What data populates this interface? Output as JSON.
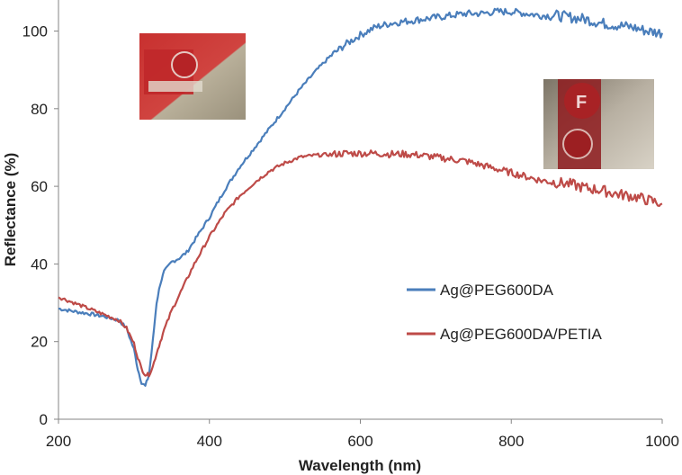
{
  "chart_data": {
    "type": "line",
    "xlabel": "Wavelength (nm)",
    "ylabel": "Reflectance (%)",
    "xlim": [
      200,
      1000
    ],
    "ylim": [
      0,
      108
    ],
    "xticks": [
      200,
      400,
      600,
      800,
      1000
    ],
    "yticks": [
      0,
      20,
      40,
      60,
      80,
      100
    ],
    "grid": false,
    "legend_position": "right-middle",
    "series": [
      {
        "name": "Ag@PEG600DA",
        "color": "#4a7ebb",
        "x": [
          200,
          220,
          240,
          260,
          280,
          290,
          300,
          305,
          310,
          315,
          320,
          325,
          330,
          335,
          340,
          350,
          360,
          370,
          380,
          400,
          420,
          440,
          460,
          480,
          500,
          520,
          540,
          560,
          580,
          600,
          620,
          640,
          660,
          680,
          700,
          720,
          740,
          760,
          780,
          800,
          820,
          840,
          860,
          880,
          900,
          920,
          940,
          960,
          980,
          1000
        ],
        "y": [
          28.5,
          27.8,
          27.2,
          26.5,
          25.5,
          23.5,
          18,
          13,
          9.5,
          8.5,
          11.5,
          20,
          30,
          35,
          38,
          40.5,
          41.5,
          43,
          46,
          52,
          59,
          65,
          70,
          75,
          80,
          85,
          89.5,
          93.5,
          96.5,
          99,
          101,
          102,
          102.5,
          103,
          103.5,
          104,
          104.5,
          104.5,
          105,
          105,
          104.5,
          104,
          104,
          103.5,
          103,
          102,
          101.5,
          101,
          100,
          99.5
        ]
      },
      {
        "name": "Ag@PEG600DA/PETIA",
        "color": "#be4b48",
        "x": [
          200,
          220,
          240,
          260,
          280,
          290,
          300,
          305,
          310,
          315,
          320,
          325,
          330,
          335,
          340,
          350,
          360,
          370,
          380,
          400,
          420,
          440,
          460,
          480,
          500,
          520,
          540,
          560,
          580,
          600,
          620,
          640,
          660,
          680,
          700,
          720,
          740,
          760,
          780,
          800,
          820,
          840,
          860,
          880,
          900,
          920,
          940,
          960,
          980,
          1000
        ],
        "y": [
          31.5,
          30,
          28.5,
          27,
          25.5,
          23.5,
          19.5,
          16,
          13,
          11.5,
          11.5,
          13.5,
          17,
          20,
          23,
          28,
          32,
          36,
          40,
          47,
          53,
          57.5,
          61,
          64,
          66,
          67.5,
          68,
          68.2,
          68.5,
          68.5,
          68.5,
          68.3,
          68.3,
          68,
          67.5,
          67,
          66.5,
          65.5,
          64.5,
          63.5,
          62.5,
          61.5,
          61,
          60.5,
          59.5,
          59,
          58,
          57.5,
          56.5,
          55.5
        ]
      }
    ]
  },
  "insets": [
    {
      "name": "blue-sample-photo",
      "description": "photo of red ribbed sample"
    },
    {
      "name": "red-sample-photo",
      "description": "photo of red sample with letter"
    }
  ]
}
